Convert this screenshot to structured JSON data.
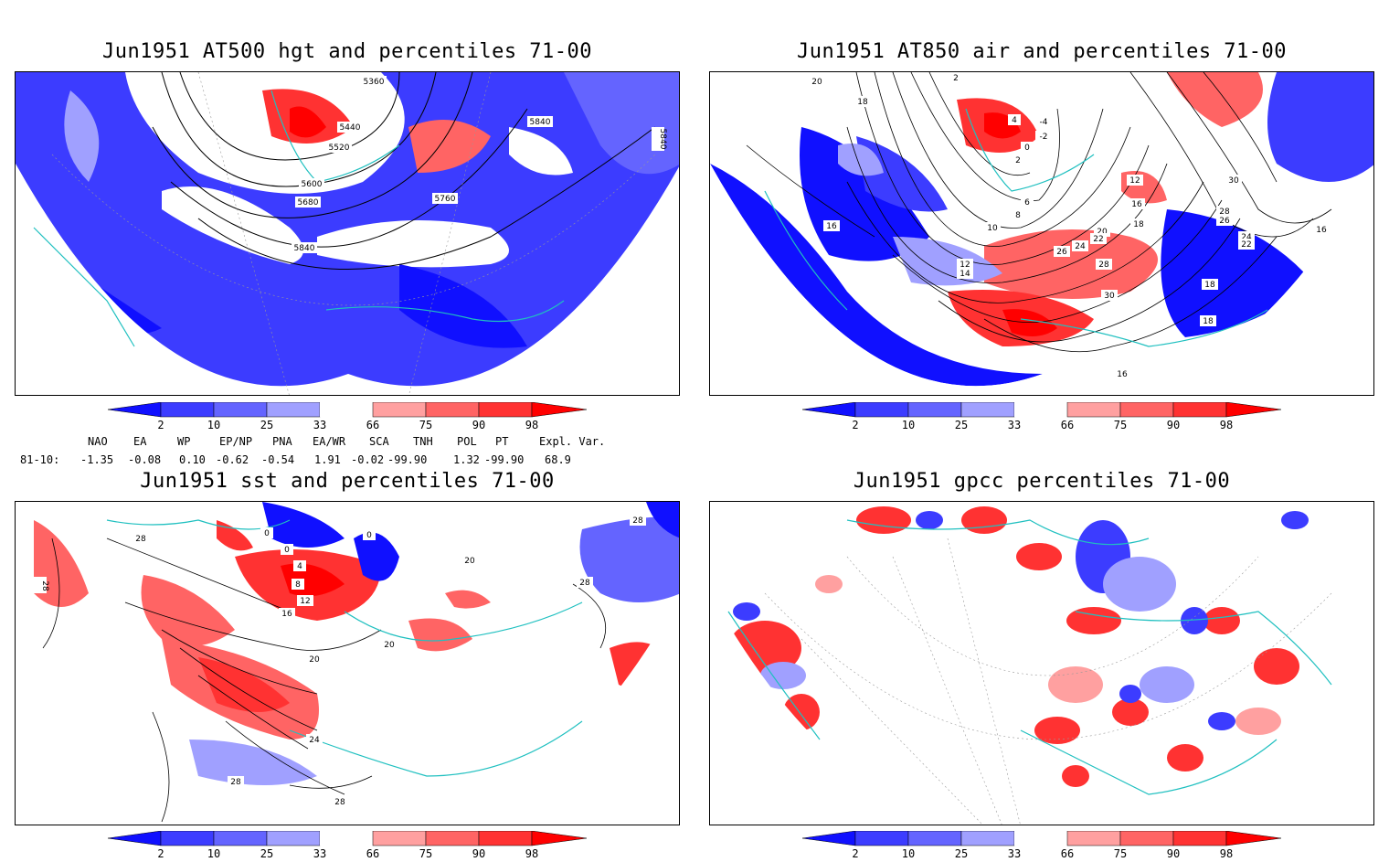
{
  "panels": [
    {
      "title": "Jun1951 AT500 hgt and percentiles 71-00",
      "contour_labels": [
        "5360",
        "5440",
        "5520",
        "5600",
        "5680",
        "5760",
        "5840",
        "5840",
        "5840"
      ]
    },
    {
      "title": "Jun1951 AT850 air and percentiles 71-00",
      "contour_labels": [
        "20",
        "18",
        "2",
        "-4",
        "-2",
        "0",
        "2",
        "4",
        "6",
        "8",
        "10",
        "12",
        "16",
        "18",
        "20",
        "22",
        "24",
        "26",
        "28",
        "30",
        "30",
        "28",
        "26",
        "24",
        "22",
        "16",
        "16",
        "18",
        "16",
        "18",
        "12",
        "14"
      ]
    },
    {
      "title": "Jun1951 sst and percentiles 71-00",
      "contour_labels": [
        "28",
        "28",
        "0",
        "0",
        "0",
        "4",
        "8",
        "12",
        "16",
        "20",
        "24",
        "28",
        "28",
        "28",
        "20",
        "20",
        "28"
      ]
    },
    {
      "title": "Jun1951 gpcc percentiles 71-00",
      "contour_labels": []
    }
  ],
  "colorbar": {
    "ticks": [
      "2",
      "10",
      "25",
      "33",
      "66",
      "75",
      "90",
      "98"
    ],
    "colors": [
      "#1010ff",
      "#3c3cff",
      "#6464ff",
      "#a0a0ff",
      "#ffffff",
      "#ffa0a0",
      "#ff6464",
      "#ff3232",
      "#ff0000"
    ]
  },
  "indices": {
    "header": [
      "NAO",
      "EA",
      "WP",
      "EP/NP",
      "PNA",
      "EA/WR",
      "SCA",
      "TNH",
      "POL",
      "PT",
      "Expl. Var."
    ],
    "row_label": "81-10:",
    "values": [
      "-1.35",
      "-0.08",
      "0.10",
      "-0.62",
      "-0.54",
      "1.91",
      "-0.02",
      "-99.90",
      "1.32",
      "-99.90",
      "68.9"
    ]
  }
}
